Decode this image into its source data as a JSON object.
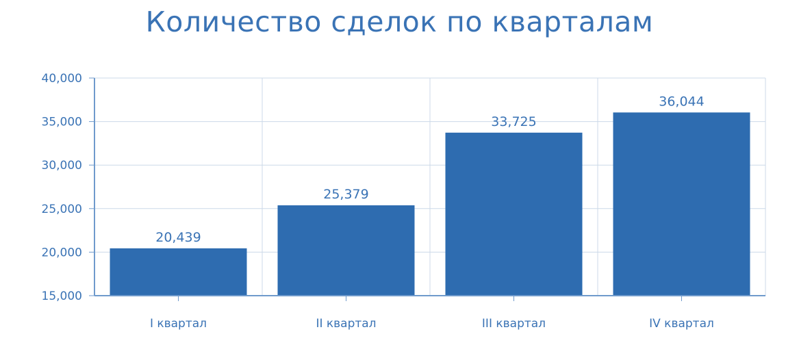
{
  "chart_data": {
    "type": "bar",
    "title": "Количество сделок по кварталам",
    "categories": [
      "I квартал",
      "II квартал",
      "III квартал",
      "IV квартал"
    ],
    "values": [
      20439,
      25379,
      33725,
      36044
    ],
    "value_labels": [
      "20,439",
      "25,379",
      "33,725",
      "36,044"
    ],
    "ylim": [
      15000,
      40000
    ],
    "yticks": [
      15000,
      20000,
      25000,
      30000,
      35000,
      40000
    ],
    "ytick_labels": [
      "15,000",
      "20,000",
      "25,000",
      "30,000",
      "35,000",
      "40,000"
    ],
    "xlabel": "",
    "ylabel": "",
    "grid": true,
    "legend": "none"
  },
  "colors": {
    "bar": "#2e6cb0",
    "text": "#3a73b5",
    "grid": "#ccd9e8",
    "axis": "#6f9acc"
  }
}
